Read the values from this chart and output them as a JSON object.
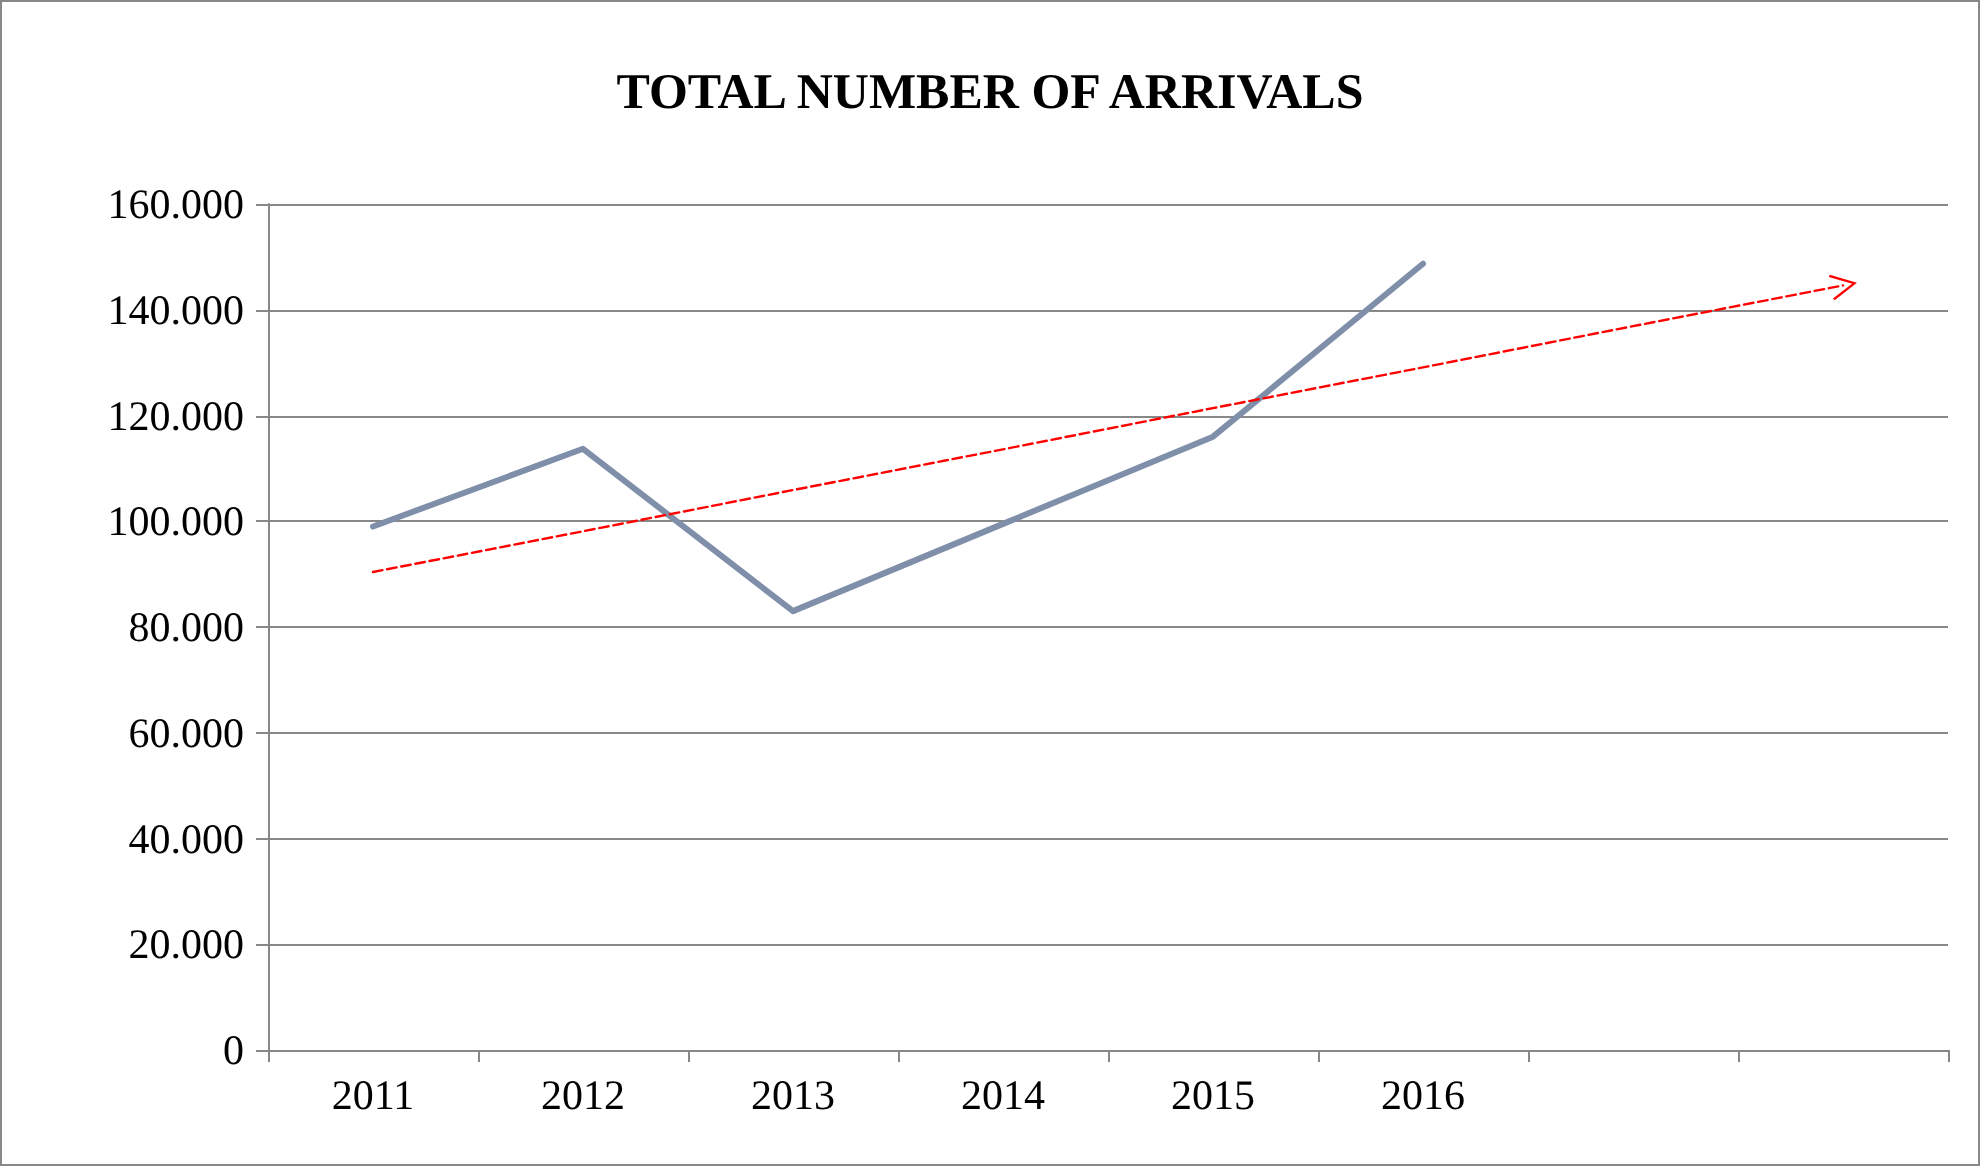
{
  "chart_data": {
    "type": "line",
    "title": "TOTAL NUMBER OF ARRIVALS",
    "categories": [
      "2011",
      "2012",
      "2013",
      "2014",
      "2015",
      "2016",
      null,
      null
    ],
    "series": [
      {
        "color": "#7f8faa",
        "values": [
          99000,
          113700,
          83000,
          99500,
          116000,
          148700,
          null,
          null
        ],
        "line_style": "solid"
      },
      {
        "color": "#ff0000",
        "values": [
          90400,
          98100,
          105900,
          113600,
          121400,
          129100,
          136900,
          144600
        ],
        "line_style": "dashed"
      }
    ],
    "ylim": [
      0,
      160000
    ],
    "yticks": [
      0,
      {
        "value": 20000,
        "label": "20.000"
      },
      {
        "value": 40000,
        "label": "40.000"
      },
      {
        "value": 60000,
        "label": "60.000"
      },
      {
        "value": 80000,
        "label": "80.000"
      },
      {
        "value": 100000,
        "label": "100.000"
      },
      {
        "value": 120000,
        "label": "120.000"
      },
      {
        "value": 140000,
        "label": "140.000"
      },
      {
        "value": 160000,
        "label": "160.000"
      }
    ],
    "grid": "y",
    "marker": "none"
  }
}
